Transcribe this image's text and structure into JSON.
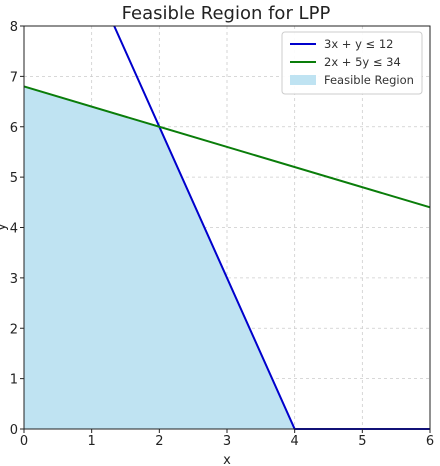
{
  "chart_data": {
    "type": "area",
    "title": "Feasible Region for LPP",
    "xlabel": "x",
    "ylabel": "y",
    "xlim": [
      0,
      6
    ],
    "ylim": [
      0,
      8
    ],
    "xticks": [
      0,
      1,
      2,
      3,
      4,
      5,
      6
    ],
    "yticks": [
      0,
      1,
      2,
      3,
      4,
      5,
      6,
      7,
      8
    ],
    "grid": true,
    "legend_position": "top-right",
    "series": [
      {
        "name": "3x + y ≤ 12",
        "kind": "line",
        "color": "#0000cc",
        "points": [
          [
            1.333,
            8
          ],
          [
            4,
            0
          ],
          [
            6,
            0
          ]
        ]
      },
      {
        "name": "2x + 5y ≤ 34",
        "kind": "line",
        "color": "#0a7d0a",
        "points": [
          [
            0,
            6.8
          ],
          [
            6,
            4.4
          ]
        ]
      },
      {
        "name": "Feasible Region",
        "kind": "area",
        "color": "#bfe3f2",
        "points": [
          [
            0,
            0
          ],
          [
            0,
            6.8
          ],
          [
            2,
            6
          ],
          [
            4,
            0
          ]
        ]
      }
    ]
  }
}
